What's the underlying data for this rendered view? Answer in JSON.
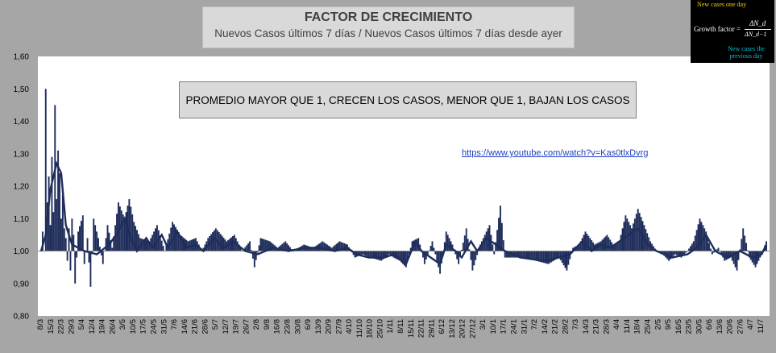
{
  "title": "FACTOR DE CRECIMIENTO",
  "subtitle": "Nuevos Casos últimos 7 días / Nuevos Casos últimos 7 días desde ayer",
  "note": "PROMEDIO MAYOR QUE 1, CRECEN LOS CASOS, MENOR QUE 1, BAJAN LOS CASOS",
  "link": "https://www.youtube.com/watch?v=Kas0tlxDvrg",
  "formula": {
    "top_text": "New cases one day",
    "label": "Growth factor =",
    "numerator": "ΔN_d",
    "denominator": "ΔN_d−1",
    "bottom_text": "New cases the previous day"
  },
  "colors": {
    "series": "#1f2d5a",
    "background": "#a6a6a6",
    "plot": "#ffffff",
    "baseline": "#888888"
  },
  "chart_data": {
    "type": "bar",
    "title": "FACTOR DE CRECIMIENTO",
    "subtitle": "Nuevos Casos últimos 7 días / Nuevos Casos últimos 7 días desde ayer",
    "ylim": [
      0.8,
      1.6
    ],
    "yticks": [
      "0,80",
      "0,90",
      "1,00",
      "1,10",
      "1,20",
      "1,30",
      "1,40",
      "1,50",
      "1,60"
    ],
    "baseline": 1.0,
    "grid": false,
    "x_tick_labels": [
      "8/3",
      "15/3",
      "22/3",
      "29/3",
      "5/4",
      "12/4",
      "19/4",
      "26/4",
      "3/5",
      "10/5",
      "17/5",
      "24/5",
      "31/5",
      "7/6",
      "14/6",
      "21/6",
      "28/6",
      "5/7",
      "12/7",
      "19/7",
      "26/7",
      "2/8",
      "9/8",
      "16/8",
      "23/8",
      "30/8",
      "6/9",
      "13/9",
      "20/9",
      "27/9",
      "4/10",
      "11/10",
      "18/10",
      "25/10",
      "1/11",
      "8/11",
      "15/11",
      "22/11",
      "29/11",
      "6/12",
      "13/12",
      "20/12",
      "27/12",
      "3/1",
      "10/1",
      "17/1",
      "24/1",
      "31/1",
      "7/2",
      "14/2",
      "21/2",
      "28/2",
      "7/3",
      "14/3",
      "21/3",
      "28/3",
      "4/4",
      "11/4",
      "18/4",
      "25/4",
      "2/5",
      "9/5",
      "16/5",
      "23/5",
      "30/5",
      "6/6",
      "13/6",
      "20/6",
      "27/6",
      "4/7",
      "11/7"
    ],
    "keypoints": [
      [
        0,
        1.0
      ],
      [
        1,
        1.06
      ],
      [
        2,
        1.0
      ],
      [
        3,
        1.5
      ],
      [
        4,
        1.15
      ],
      [
        5,
        1.23
      ],
      [
        6,
        1.08
      ],
      [
        7,
        1.29
      ],
      [
        8,
        1.12
      ],
      [
        9,
        1.45
      ],
      [
        10,
        1.16
      ],
      [
        11,
        1.31
      ],
      [
        12,
        1.24
      ],
      [
        13,
        1.1
      ],
      [
        14,
        1.19
      ],
      [
        15,
        1.07
      ],
      [
        16,
        1.04
      ],
      [
        17,
        0.97
      ],
      [
        18,
        1.07
      ],
      [
        19,
        0.94
      ],
      [
        20,
        1.1
      ],
      [
        21,
        1.05
      ],
      [
        22,
        0.9
      ],
      [
        24,
        1.06
      ],
      [
        27,
        1.11
      ],
      [
        28,
        0.96
      ],
      [
        30,
        1.04
      ],
      [
        32,
        0.89
      ],
      [
        34,
        1.1
      ],
      [
        37,
        1.04
      ],
      [
        40,
        0.96
      ],
      [
        43,
        1.08
      ],
      [
        46,
        1.01
      ],
      [
        50,
        1.15
      ],
      [
        54,
        1.1
      ],
      [
        57,
        1.16
      ],
      [
        60,
        1.09
      ],
      [
        64,
        1.04
      ],
      [
        70,
        1.03
      ],
      [
        75,
        1.08
      ],
      [
        80,
        1.0
      ],
      [
        85,
        1.09
      ],
      [
        90,
        1.05
      ],
      [
        95,
        1.03
      ],
      [
        100,
        1.04
      ],
      [
        104,
        1.0
      ],
      [
        108,
        1.04
      ],
      [
        113,
        1.07
      ],
      [
        120,
        1.03
      ],
      [
        125,
        1.05
      ],
      [
        130,
        1.0
      ],
      [
        135,
        1.03
      ],
      [
        138,
        0.95
      ],
      [
        142,
        1.04
      ],
      [
        148,
        1.03
      ],
      [
        153,
        1.01
      ],
      [
        158,
        1.03
      ],
      [
        163,
        1.0
      ],
      [
        170,
        1.02
      ],
      [
        176,
        1.01
      ],
      [
        182,
        1.03
      ],
      [
        188,
        1.01
      ],
      [
        193,
        1.03
      ],
      [
        198,
        1.02
      ],
      [
        203,
        0.98
      ],
      [
        208,
        0.99
      ],
      [
        213,
        0.98
      ],
      [
        220,
        0.97
      ],
      [
        225,
        0.99
      ],
      [
        228,
        0.98
      ],
      [
        232,
        0.97
      ],
      [
        236,
        0.95
      ],
      [
        240,
        1.03
      ],
      [
        244,
        1.04
      ],
      [
        248,
        0.96
      ],
      [
        253,
        1.03
      ],
      [
        258,
        0.93
      ],
      [
        262,
        1.06
      ],
      [
        266,
        1.02
      ],
      [
        270,
        0.96
      ],
      [
        275,
        1.07
      ],
      [
        279,
        0.94
      ],
      [
        284,
        1.02
      ],
      [
        290,
        1.08
      ],
      [
        293,
        0.99
      ],
      [
        297,
        1.14
      ],
      [
        300,
        0.98
      ],
      [
        305,
        0.98
      ],
      [
        312,
        0.98
      ],
      [
        320,
        0.97
      ],
      [
        328,
        0.96
      ],
      [
        335,
        0.98
      ],
      [
        340,
        0.94
      ],
      [
        344,
        1.01
      ],
      [
        348,
        1.02
      ],
      [
        352,
        1.06
      ],
      [
        358,
        1.02
      ],
      [
        362,
        1.03
      ],
      [
        366,
        1.05
      ],
      [
        370,
        1.02
      ],
      [
        374,
        1.03
      ],
      [
        378,
        1.11
      ],
      [
        382,
        1.07
      ],
      [
        386,
        1.13
      ],
      [
        390,
        1.08
      ],
      [
        394,
        1.03
      ],
      [
        398,
        1.0
      ],
      [
        402,
        0.99
      ],
      [
        406,
        0.97
      ],
      [
        410,
        0.99
      ],
      [
        414,
        0.98
      ],
      [
        418,
        1.0
      ],
      [
        422,
        1.03
      ],
      [
        426,
        1.1
      ],
      [
        430,
        1.06
      ],
      [
        434,
        0.99
      ],
      [
        438,
        1.01
      ],
      [
        442,
        0.97
      ],
      [
        446,
        0.98
      ],
      [
        450,
        0.94
      ],
      [
        454,
        1.07
      ],
      [
        458,
        0.98
      ],
      [
        462,
        0.95
      ],
      [
        466,
        0.99
      ],
      [
        469,
        1.03
      ]
    ],
    "moving_average_keypoints": [
      [
        0,
        1.0
      ],
      [
        3,
        1.05
      ],
      [
        6,
        1.19
      ],
      [
        10,
        1.27
      ],
      [
        13,
        1.24
      ],
      [
        16,
        1.08
      ],
      [
        20,
        1.02
      ],
      [
        28,
        1.0
      ],
      [
        36,
        0.99
      ],
      [
        44,
        1.02
      ],
      [
        50,
        1.06
      ],
      [
        54,
        1.1
      ],
      [
        58,
        1.04
      ],
      [
        62,
        1.0
      ],
      [
        68,
        1.04
      ],
      [
        72,
        1.01
      ],
      [
        78,
        1.05
      ],
      [
        82,
        1.01
      ],
      [
        88,
        1.06
      ],
      [
        94,
        1.01
      ],
      [
        100,
        1.02
      ],
      [
        105,
        1.0
      ],
      [
        112,
        1.04
      ],
      [
        118,
        1.01
      ],
      [
        124,
        1.03
      ],
      [
        132,
        1.0
      ],
      [
        140,
        0.99
      ],
      [
        150,
        1.01
      ],
      [
        160,
        1.0
      ],
      [
        170,
        1.01
      ],
      [
        180,
        1.01
      ],
      [
        190,
        1.0
      ],
      [
        198,
        1.01
      ],
      [
        204,
        0.99
      ],
      [
        212,
        0.98
      ],
      [
        222,
        0.98
      ],
      [
        228,
        0.99
      ],
      [
        236,
        0.96
      ],
      [
        242,
        1.03
      ],
      [
        246,
        1.0
      ],
      [
        252,
        0.98
      ],
      [
        258,
        0.96
      ],
      [
        262,
        1.02
      ],
      [
        268,
        1.0
      ],
      [
        272,
        0.98
      ],
      [
        278,
        1.03
      ],
      [
        282,
        1.0
      ],
      [
        288,
        1.04
      ],
      [
        294,
        1.02
      ],
      [
        300,
        1.0
      ],
      [
        310,
        0.98
      ],
      [
        325,
        0.97
      ],
      [
        335,
        0.98
      ],
      [
        342,
        0.99
      ],
      [
        350,
        1.03
      ],
      [
        356,
        1.0
      ],
      [
        362,
        1.02
      ],
      [
        368,
        1.01
      ],
      [
        374,
        1.03
      ],
      [
        380,
        1.05
      ],
      [
        386,
        1.07
      ],
      [
        392,
        1.02
      ],
      [
        398,
        1.0
      ],
      [
        408,
        0.98
      ],
      [
        418,
        0.99
      ],
      [
        424,
        1.01
      ],
      [
        430,
        1.05
      ],
      [
        436,
        1.0
      ],
      [
        444,
        0.98
      ],
      [
        452,
        1.0
      ],
      [
        460,
        0.98
      ],
      [
        466,
        0.99
      ],
      [
        469,
        1.02
      ]
    ],
    "n_points": 470
  }
}
